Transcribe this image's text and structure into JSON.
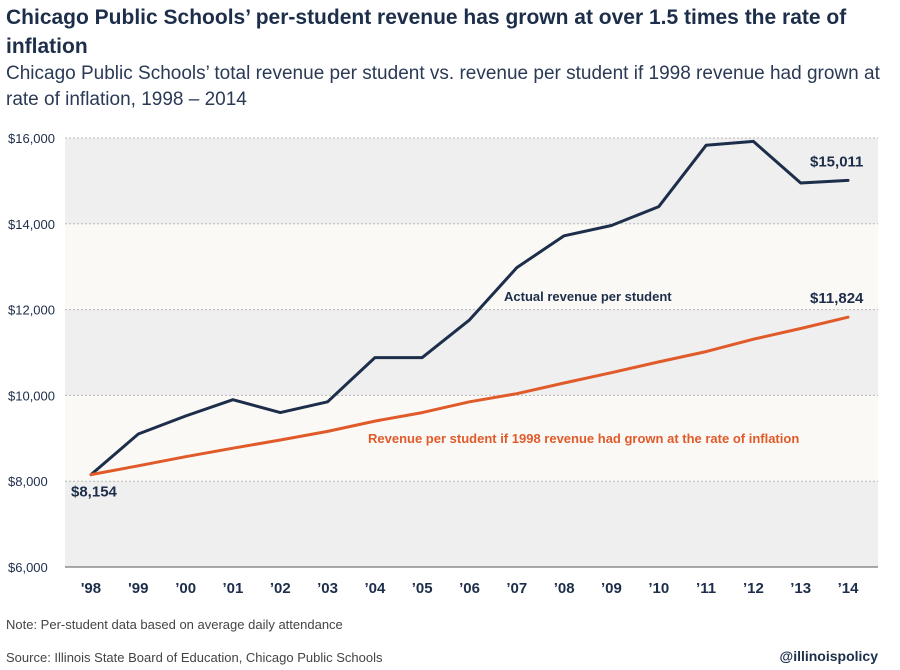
{
  "title": "Chicago Public Schools’ per-student revenue has grown at over 1.5 times the rate of inflation",
  "subtitle": "Chicago Public Schools’ total revenue per student vs. revenue per student if 1998 revenue had grown at rate of inflation, 1998 – 2014",
  "note": "Note: Per-student data based on average daily attendance",
  "source": "Source: Illinois State Board of Education, Chicago Public Schools",
  "handle": "@illinoispolicy",
  "colors": {
    "actual": "#1d2e4a",
    "inflation": "#e05a2a",
    "band": "#efefef",
    "plot_bg": "#fbf9f6",
    "grid": "#b8b8b8"
  },
  "chart_data": {
    "type": "line",
    "categories": [
      "'98",
      "'99",
      "’00",
      "’01",
      "’02",
      "’03",
      "’04",
      "’05",
      "’06",
      "’07",
      "’08",
      "’09",
      "’10",
      "’11",
      "’12",
      "’13",
      "’14"
    ],
    "ylim": [
      6000,
      16000
    ],
    "yticks": [
      6000,
      8000,
      10000,
      12000,
      14000,
      16000
    ],
    "ytick_labels": [
      "$6,000",
      "$8,000",
      "$10,000",
      "$12,000",
      "$14,000",
      "$16,000"
    ],
    "series": [
      {
        "name": "Actual revenue per student",
        "values": [
          8154,
          9100,
          9520,
          9900,
          9600,
          9850,
          10880,
          10880,
          11760,
          12980,
          13720,
          13960,
          14400,
          15830,
          15920,
          14950,
          15011
        ]
      },
      {
        "name": "Revenue per student if 1998 revenue had grown at the rate of inflation",
        "values": [
          8154,
          8360,
          8570,
          8770,
          8960,
          9160,
          9400,
          9600,
          9850,
          10040,
          10290,
          10530,
          10780,
          11020,
          11310,
          11560,
          11824
        ]
      }
    ],
    "annotations": [
      {
        "text": "$8,154",
        "series": 0,
        "index": 0
      },
      {
        "text": "$15,011",
        "series": 0,
        "index": 16
      },
      {
        "text": "$11,824",
        "series": 1,
        "index": 16
      }
    ],
    "grid": true
  }
}
